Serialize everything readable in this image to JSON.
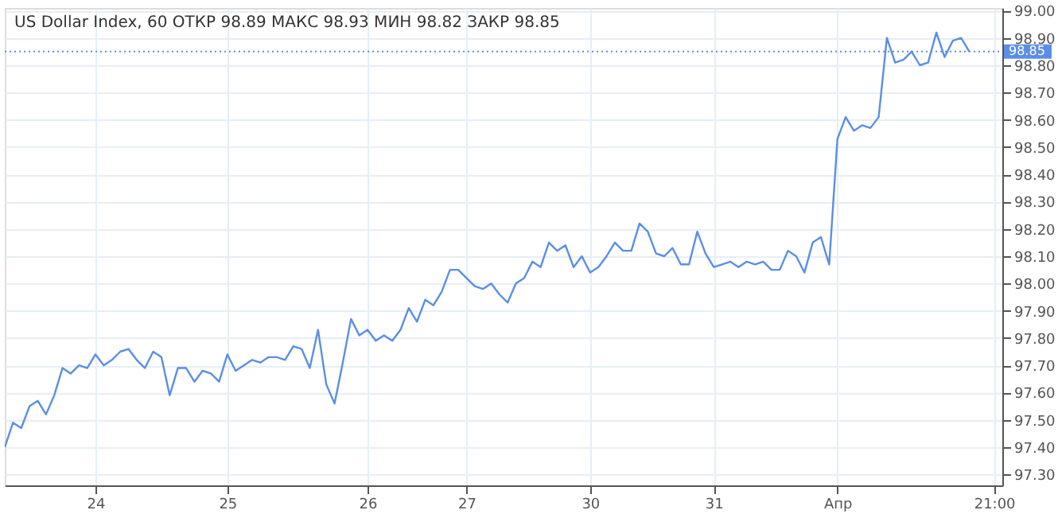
{
  "chart_data": {
    "type": "line",
    "title": "US Dollar Index, 60",
    "annotations": [
      "ОТКР 98.89",
      "МАКС 98.93",
      "МИН 98.82",
      "ЗАКР 98.85"
    ],
    "categories": [
      null,
      null,
      null,
      null,
      null,
      null,
      null,
      null,
      null,
      null,
      null,
      "24",
      null,
      null,
      null,
      null,
      null,
      null,
      null,
      null,
      null,
      null,
      null,
      null,
      null,
      null,
      null,
      "25",
      null,
      null,
      null,
      null,
      null,
      null,
      null,
      null,
      null,
      null,
      null,
      null,
      null,
      null,
      null,
      null,
      "26",
      null,
      null,
      null,
      null,
      null,
      null,
      null,
      null,
      null,
      null,
      null,
      "27",
      null,
      null,
      null,
      null,
      null,
      null,
      null,
      null,
      null,
      null,
      null,
      null,
      null,
      null,
      "30",
      null,
      null,
      null,
      null,
      null,
      null,
      null,
      null,
      null,
      null,
      null,
      null,
      null,
      null,
      "31",
      null,
      null,
      null,
      null,
      null,
      null,
      null,
      null,
      null,
      null,
      null,
      null,
      null,
      null,
      "Апр",
      null,
      null,
      null,
      null,
      null,
      null,
      null,
      null,
      null,
      null,
      null,
      null,
      null,
      null,
      null,
      null,
      null,
      null,
      "21:00",
      null
    ],
    "series": [
      {
        "color": "#5b8ee6",
        "values": [
          97.4,
          97.49,
          97.47,
          97.55,
          97.57,
          97.52,
          97.59,
          97.69,
          97.67,
          97.7,
          97.69,
          97.74,
          97.7,
          97.72,
          97.75,
          97.76,
          97.72,
          97.69,
          97.75,
          97.73,
          97.59,
          97.69,
          97.69,
          97.64,
          97.68,
          97.67,
          97.64,
          97.74,
          97.68,
          97.7,
          97.72,
          97.71,
          97.73,
          97.73,
          97.72,
          97.77,
          97.76,
          97.69,
          97.83,
          97.63,
          97.56,
          97.71,
          97.87,
          97.81,
          97.83,
          97.79,
          97.81,
          97.79,
          97.83,
          97.91,
          97.86,
          97.94,
          97.92,
          97.97,
          98.05,
          98.05,
          98.02,
          97.99,
          97.98,
          98.0,
          97.96,
          97.93,
          98.0,
          98.02,
          98.08,
          98.06,
          98.15,
          98.12,
          98.14,
          98.06,
          98.1,
          98.04,
          98.06,
          98.1,
          98.15,
          98.12,
          98.12,
          98.22,
          98.19,
          98.11,
          98.1,
          98.13,
          98.07,
          98.07,
          98.19,
          98.11,
          98.06,
          98.07,
          98.08,
          98.06,
          98.08,
          98.07,
          98.08,
          98.05,
          98.05,
          98.12,
          98.1,
          98.04,
          98.15,
          98.17,
          98.07,
          98.53,
          98.61,
          98.56,
          98.58,
          98.57,
          98.61,
          98.9,
          98.81,
          98.82,
          98.85,
          98.8,
          98.81,
          98.92,
          98.83,
          98.89,
          98.9,
          98.85,
          null,
          null,
          null,
          null
        ]
      }
    ],
    "ylim": [
      97.26,
      99.01
    ],
    "yticks": [
      {
        "value": 97.3,
        "label": "97.30"
      },
      {
        "value": 97.4,
        "label": "97.40"
      },
      {
        "value": 97.5,
        "label": "97.50"
      },
      {
        "value": 97.6,
        "label": "97.60"
      },
      {
        "value": 97.7,
        "label": "97.70"
      },
      {
        "value": 97.8,
        "label": "97.80"
      },
      {
        "value": 97.9,
        "label": "97.90"
      },
      {
        "value": 98.0,
        "label": "98.00"
      },
      {
        "value": 98.1,
        "label": "98.10"
      },
      {
        "value": 98.2,
        "label": "98.20"
      },
      {
        "value": 98.3,
        "label": "98.30"
      },
      {
        "value": 98.4,
        "label": "98.40"
      },
      {
        "value": 98.5,
        "label": "98.50"
      },
      {
        "value": 98.6,
        "label": "98.60"
      },
      {
        "value": 98.7,
        "label": "98.70"
      },
      {
        "value": 98.8,
        "label": "98.80"
      },
      {
        "value": 98.9,
        "label": "98.90"
      },
      {
        "value": 99.0,
        "label": "99.00"
      }
    ],
    "ref_lines": [
      {
        "axis": "y",
        "value": 98.85,
        "label": "98.85",
        "color": "#5b8ee6",
        "line_style": "dotted"
      }
    ],
    "grid": true,
    "marker": "none",
    "line_style": "solid"
  }
}
